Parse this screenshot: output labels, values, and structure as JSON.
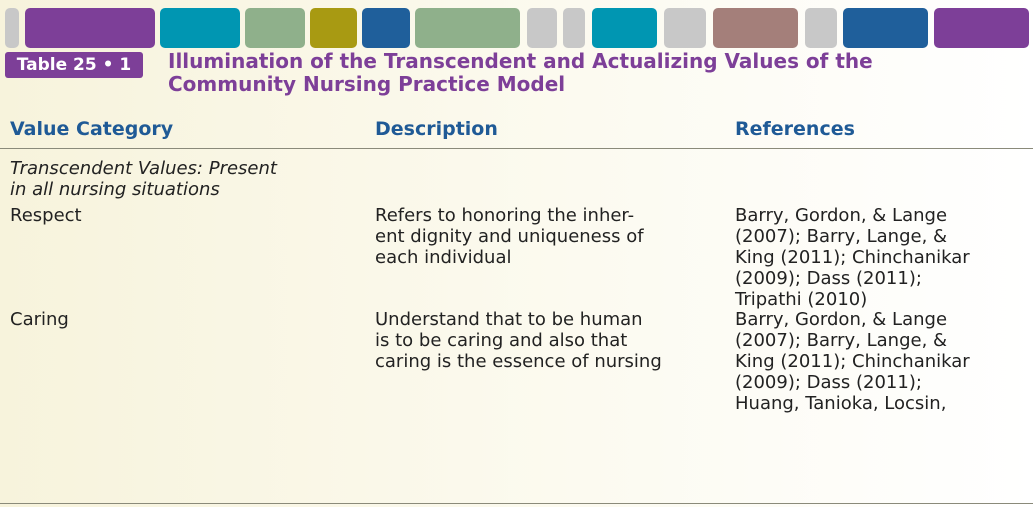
{
  "header": {
    "table_label": "Table 25 • 1",
    "title": [
      "Illumination of the Transcendent and Actualizing Values of the",
      "Community Nursing Practice Model"
    ]
  },
  "table": {
    "columns": [
      "Value Category",
      "Description",
      "References"
    ],
    "section": [
      "Transcendent Values: Present",
      "in all nursing situations"
    ],
    "rows": [
      [
        [
          "Respect"
        ],
        [
          "Refers to honoring the inher-",
          "ent dignity and uniqueness of",
          "each individual"
        ],
        [
          "Barry, Gordon, & Lange",
          "(2007); Barry, Lange, &",
          "King (2011); Chinchanikar",
          "(2009); Dass (2011);",
          "Tripathi (2010)"
        ]
      ],
      [
        [
          "Caring"
        ],
        [
          "Understand that to be human",
          "is to be caring and also that",
          "caring is the essence of nursing"
        ],
        [
          "Barry, Gordon, & Lange",
          "(2007); Barry, Lange, &",
          "King (2011); Chinchanikar",
          "(2009); Dass (2011);",
          "Huang, Tanioka, Locsin,"
        ]
      ]
    ]
  }
}
